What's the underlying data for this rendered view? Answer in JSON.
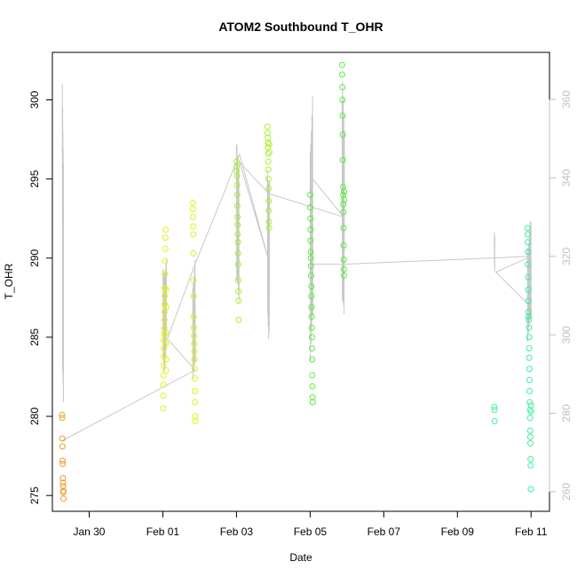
{
  "chart_data": {
    "type": "scatter",
    "title": "ATOM2 Southbound T_OHR",
    "xlabel": "Date",
    "ylabel": "T_OHR",
    "x_axis": {
      "range": [
        "2022-01-29T00:00",
        "2022-02-11T12:00"
      ],
      "ticks": [
        {
          "at": "2022-01-30",
          "label": "Jan 30"
        },
        {
          "at": "2022-02-01",
          "label": "Feb 01"
        },
        {
          "at": "2022-02-03",
          "label": "Feb 03"
        },
        {
          "at": "2022-02-05",
          "label": "Feb 05"
        },
        {
          "at": "2022-02-07",
          "label": "Feb 07"
        },
        {
          "at": "2022-02-09",
          "label": "Feb 09"
        },
        {
          "at": "2022-02-11",
          "label": "Feb 11"
        }
      ]
    },
    "y_axis_left": {
      "range": [
        274,
        303
      ],
      "ticks": [
        275,
        280,
        285,
        290,
        295,
        300
      ]
    },
    "y_axis_right": {
      "range": [
        255,
        372
      ],
      "ticks": [
        260,
        280,
        300,
        320,
        340,
        360
      ],
      "color": "#bfbfbf"
    },
    "series": [
      {
        "color": "#ee9a2a",
        "points": [
          {
            "x": "2022-01-29T06:20",
            "y": 280.1
          },
          {
            "x": "2022-01-29T06:25",
            "y": 279.9
          },
          {
            "x": "2022-01-29T06:30",
            "y": 278.6
          },
          {
            "x": "2022-01-29T06:35",
            "y": 278.1
          },
          {
            "x": "2022-01-29T06:40",
            "y": 277.2
          },
          {
            "x": "2022-01-29T06:45",
            "y": 277.0
          },
          {
            "x": "2022-01-29T06:50",
            "y": 276.1
          },
          {
            "x": "2022-01-29T06:55",
            "y": 275.8
          },
          {
            "x": "2022-01-29T07:00",
            "y": 275.6
          },
          {
            "x": "2022-01-29T07:05",
            "y": 275.2
          },
          {
            "x": "2022-01-29T07:10",
            "y": 275.3
          },
          {
            "x": "2022-01-29T07:15",
            "y": 274.8
          }
        ]
      },
      {
        "color": "#e1f218",
        "points": [
          {
            "x": "2022-02-01T00:10",
            "y": 280.5
          },
          {
            "x": "2022-02-01T00:15",
            "y": 281.3
          },
          {
            "x": "2022-02-01T00:20",
            "y": 282.0
          },
          {
            "x": "2022-02-01T00:25",
            "y": 282.6
          },
          {
            "x": "2022-02-01T00:30",
            "y": 283.2
          },
          {
            "x": "2022-02-01T00:35",
            "y": 283.8
          },
          {
            "x": "2022-02-01T00:40",
            "y": 284.3
          },
          {
            "x": "2022-02-01T00:45",
            "y": 284.8
          },
          {
            "x": "2022-02-01T00:50",
            "y": 285.2
          },
          {
            "x": "2022-02-01T00:55",
            "y": 285.6
          },
          {
            "x": "2022-02-01T01:00",
            "y": 286.1
          },
          {
            "x": "2022-02-01T01:05",
            "y": 286.6
          },
          {
            "x": "2022-02-01T01:10",
            "y": 287.1
          },
          {
            "x": "2022-02-01T01:15",
            "y": 287.6
          },
          {
            "x": "2022-02-01T01:20",
            "y": 288.1
          },
          {
            "x": "2022-02-01T01:25",
            "y": 289.0
          },
          {
            "x": "2022-02-01T01:30",
            "y": 289.8
          },
          {
            "x": "2022-02-01T01:35",
            "y": 290.6
          },
          {
            "x": "2022-02-01T01:40",
            "y": 291.3
          },
          {
            "x": "2022-02-01T01:45",
            "y": 291.8
          },
          {
            "x": "2022-02-01T01:50",
            "y": 284.6
          },
          {
            "x": "2022-02-01T01:55",
            "y": 285.3
          },
          {
            "x": "2022-02-01T02:00",
            "y": 283.6
          },
          {
            "x": "2022-02-01T02:05",
            "y": 282.9
          },
          {
            "x": "2022-02-01T02:10",
            "y": 286.9
          },
          {
            "x": "2022-02-01T02:15",
            "y": 288.0
          },
          {
            "x": "2022-02-01T19:30",
            "y": 293.5
          },
          {
            "x": "2022-02-01T19:35",
            "y": 293.1
          },
          {
            "x": "2022-02-01T19:40",
            "y": 292.6
          },
          {
            "x": "2022-02-01T19:45",
            "y": 292.0
          },
          {
            "x": "2022-02-01T19:50",
            "y": 291.5
          },
          {
            "x": "2022-02-01T19:55",
            "y": 290.3
          },
          {
            "x": "2022-02-01T20:00",
            "y": 288.6
          },
          {
            "x": "2022-02-01T20:05",
            "y": 287.6
          },
          {
            "x": "2022-02-01T20:10",
            "y": 286.3
          },
          {
            "x": "2022-02-01T20:15",
            "y": 285.6
          },
          {
            "x": "2022-02-01T20:20",
            "y": 285.1
          },
          {
            "x": "2022-02-01T20:25",
            "y": 284.6
          },
          {
            "x": "2022-02-01T20:30",
            "y": 284.1
          },
          {
            "x": "2022-02-01T20:35",
            "y": 283.6
          },
          {
            "x": "2022-02-01T20:40",
            "y": 283.0
          },
          {
            "x": "2022-02-01T20:45",
            "y": 282.4
          },
          {
            "x": "2022-02-01T20:50",
            "y": 281.6
          },
          {
            "x": "2022-02-01T20:55",
            "y": 280.9
          },
          {
            "x": "2022-02-01T21:00",
            "y": 280.0
          },
          {
            "x": "2022-02-01T21:05",
            "y": 279.7
          }
        ]
      },
      {
        "color": "#a8f22c",
        "points": [
          {
            "x": "2022-02-03T00:05",
            "y": 296.1
          },
          {
            "x": "2022-02-03T00:10",
            "y": 295.8
          },
          {
            "x": "2022-02-03T00:15",
            "y": 295.5
          },
          {
            "x": "2022-02-03T00:20",
            "y": 295.2
          },
          {
            "x": "2022-02-03T00:25",
            "y": 294.6
          },
          {
            "x": "2022-02-03T00:30",
            "y": 294.0
          },
          {
            "x": "2022-02-03T00:35",
            "y": 293.3
          },
          {
            "x": "2022-02-03T00:40",
            "y": 292.6
          },
          {
            "x": "2022-02-03T00:45",
            "y": 292.1
          },
          {
            "x": "2022-02-03T00:50",
            "y": 291.5
          },
          {
            "x": "2022-02-03T00:55",
            "y": 291.0
          },
          {
            "x": "2022-02-03T01:00",
            "y": 290.3
          },
          {
            "x": "2022-02-03T01:05",
            "y": 289.6
          },
          {
            "x": "2022-02-03T01:10",
            "y": 288.6
          },
          {
            "x": "2022-02-03T01:15",
            "y": 287.9
          },
          {
            "x": "2022-02-03T01:20",
            "y": 287.3
          },
          {
            "x": "2022-02-03T01:25",
            "y": 286.1
          },
          {
            "x": "2022-02-03T20:10",
            "y": 298.3
          },
          {
            "x": "2022-02-03T20:15",
            "y": 297.9
          },
          {
            "x": "2022-02-03T20:20",
            "y": 297.6
          },
          {
            "x": "2022-02-03T20:25",
            "y": 297.3
          },
          {
            "x": "2022-02-03T20:30",
            "y": 297.0
          },
          {
            "x": "2022-02-03T20:35",
            "y": 296.6
          },
          {
            "x": "2022-02-03T20:40",
            "y": 296.1
          },
          {
            "x": "2022-02-03T20:45",
            "y": 295.6
          },
          {
            "x": "2022-02-03T20:50",
            "y": 295.0
          },
          {
            "x": "2022-02-03T20:55",
            "y": 294.4
          },
          {
            "x": "2022-02-03T21:00",
            "y": 293.6
          },
          {
            "x": "2022-02-03T21:05",
            "y": 293.0
          },
          {
            "x": "2022-02-03T21:10",
            "y": 292.3
          },
          {
            "x": "2022-02-03T21:15",
            "y": 291.9
          },
          {
            "x": "2022-02-03T21:20",
            "y": 297.2
          },
          {
            "x": "2022-02-03T21:25",
            "y": 296.7
          }
        ]
      },
      {
        "color": "#57ef3c",
        "points": [
          {
            "x": "2022-02-05T00:00",
            "y": 294.0
          },
          {
            "x": "2022-02-05T00:05",
            "y": 293.2
          },
          {
            "x": "2022-02-05T00:10",
            "y": 292.5
          },
          {
            "x": "2022-02-05T00:15",
            "y": 291.8
          },
          {
            "x": "2022-02-05T00:20",
            "y": 291.1
          },
          {
            "x": "2022-02-05T00:25",
            "y": 290.4
          },
          {
            "x": "2022-02-05T00:30",
            "y": 290.0
          },
          {
            "x": "2022-02-05T00:35",
            "y": 289.5
          },
          {
            "x": "2022-02-05T00:40",
            "y": 288.9
          },
          {
            "x": "2022-02-05T00:45",
            "y": 288.2
          },
          {
            "x": "2022-02-05T00:50",
            "y": 287.6
          },
          {
            "x": "2022-02-05T00:55",
            "y": 286.9
          },
          {
            "x": "2022-02-05T01:00",
            "y": 286.3
          },
          {
            "x": "2022-02-05T01:05",
            "y": 285.6
          },
          {
            "x": "2022-02-05T01:10",
            "y": 285.0
          },
          {
            "x": "2022-02-05T01:15",
            "y": 284.3
          },
          {
            "x": "2022-02-05T01:20",
            "y": 283.6
          },
          {
            "x": "2022-02-05T01:25",
            "y": 282.6
          },
          {
            "x": "2022-02-05T01:30",
            "y": 281.9
          },
          {
            "x": "2022-02-05T01:35",
            "y": 281.2
          },
          {
            "x": "2022-02-05T01:40",
            "y": 280.9
          },
          {
            "x": "2022-02-05T20:50",
            "y": 302.2
          },
          {
            "x": "2022-02-05T20:55",
            "y": 301.6
          },
          {
            "x": "2022-02-05T21:00",
            "y": 300.8
          },
          {
            "x": "2022-02-05T21:05",
            "y": 300.0
          },
          {
            "x": "2022-02-05T21:10",
            "y": 299.0
          },
          {
            "x": "2022-02-05T21:15",
            "y": 297.8
          },
          {
            "x": "2022-02-05T21:20",
            "y": 296.2
          },
          {
            "x": "2022-02-05T21:25",
            "y": 294.5
          },
          {
            "x": "2022-02-05T21:30",
            "y": 294.0
          },
          {
            "x": "2022-02-05T21:35",
            "y": 293.4
          },
          {
            "x": "2022-02-05T21:40",
            "y": 292.9
          },
          {
            "x": "2022-02-05T21:45",
            "y": 291.9
          },
          {
            "x": "2022-02-05T21:50",
            "y": 290.8
          },
          {
            "x": "2022-02-05T21:55",
            "y": 289.9
          },
          {
            "x": "2022-02-05T22:00",
            "y": 289.3
          },
          {
            "x": "2022-02-05T22:05",
            "y": 288.9
          },
          {
            "x": "2022-02-05T22:10",
            "y": 294.2
          },
          {
            "x": "2022-02-05T22:15",
            "y": 293.7
          }
        ]
      },
      {
        "color": "#3ef09a",
        "points": [
          {
            "x": "2022-02-10T00:05",
            "y": 280.6
          },
          {
            "x": "2022-02-10T00:10",
            "y": 280.4
          },
          {
            "x": "2022-02-10T00:15",
            "y": 279.7
          },
          {
            "x": "2022-02-10T21:40",
            "y": 291.9
          },
          {
            "x": "2022-02-10T21:45",
            "y": 291.5
          },
          {
            "x": "2022-02-10T21:50",
            "y": 291.0
          },
          {
            "x": "2022-02-10T21:55",
            "y": 290.4
          },
          {
            "x": "2022-02-10T22:00",
            "y": 289.6
          },
          {
            "x": "2022-02-10T22:05",
            "y": 288.8
          },
          {
            "x": "2022-02-10T22:10",
            "y": 288.0
          },
          {
            "x": "2022-02-10T22:15",
            "y": 287.3
          },
          {
            "x": "2022-02-10T22:20",
            "y": 286.6
          },
          {
            "x": "2022-02-10T22:25",
            "y": 286.3
          },
          {
            "x": "2022-02-10T22:30",
            "y": 286.1
          },
          {
            "x": "2022-02-10T22:35",
            "y": 285.6
          },
          {
            "x": "2022-02-10T22:40",
            "y": 285.0
          },
          {
            "x": "2022-02-10T22:45",
            "y": 284.3
          },
          {
            "x": "2022-02-10T22:50",
            "y": 283.7
          },
          {
            "x": "2022-02-10T22:55",
            "y": 283.0
          },
          {
            "x": "2022-02-10T23:00",
            "y": 282.3
          },
          {
            "x": "2022-02-10T23:05",
            "y": 281.6
          },
          {
            "x": "2022-02-10T23:10",
            "y": 280.9
          },
          {
            "x": "2022-02-10T23:15",
            "y": 280.4
          },
          {
            "x": "2022-02-10T23:20",
            "y": 279.9
          },
          {
            "x": "2022-02-10T23:25",
            "y": 279.1
          },
          {
            "x": "2022-02-10T23:30",
            "y": 278.7
          },
          {
            "x": "2022-02-10T23:35",
            "y": 278.3
          },
          {
            "x": "2022-02-10T23:40",
            "y": 277.3
          },
          {
            "x": "2022-02-10T23:45",
            "y": 276.9
          },
          {
            "x": "2022-02-10T23:50",
            "y": 275.4
          },
          {
            "x": "2022-02-10T23:55",
            "y": 280.7
          },
          {
            "x": "2022-02-11T00:00",
            "y": 280.3
          }
        ]
      }
    ],
    "secondary_line": {
      "axis": "right",
      "color": "#c8c8c8",
      "connector": [
        {
          "x": "2022-01-29T06:30",
          "y": 273
        },
        {
          "x": "2022-02-01T21:00",
          "y": 291
        },
        {
          "x": "2022-02-01T03:00",
          "y": 299
        },
        {
          "x": "2022-02-01T21:00",
          "y": 318
        },
        {
          "x": "2022-02-03T02:00",
          "y": 346
        },
        {
          "x": "2022-02-03T21:00",
          "y": 319
        },
        {
          "x": "2022-02-03T02:00",
          "y": 344
        },
        {
          "x": "2022-02-03T21:00",
          "y": 336
        },
        {
          "x": "2022-02-05T22:00",
          "y": 330
        },
        {
          "x": "2022-02-05T01:00",
          "y": 340
        },
        {
          "x": "2022-02-05T01:00",
          "y": 318
        },
        {
          "x": "2022-02-05T22:00",
          "y": 318
        },
        {
          "x": "2022-02-11T00:00",
          "y": 320
        },
        {
          "x": "2022-02-10T01:00",
          "y": 316
        },
        {
          "x": "2022-02-10T01:00",
          "y": 316
        },
        {
          "x": "2022-02-11T00:00",
          "y": 307
        }
      ],
      "bursts": [
        {
          "start": "2022-01-29T06:30",
          "end": "2022-01-29T07:15",
          "min": 268,
          "max": 364
        },
        {
          "start": "2022-02-01T00:05",
          "end": "2022-02-01T02:20",
          "min": 290,
          "max": 324
        },
        {
          "start": "2022-02-01T19:30",
          "end": "2022-02-01T21:10",
          "min": 284,
          "max": 320
        },
        {
          "start": "2022-02-03T00:00",
          "end": "2022-02-03T01:40",
          "min": 302,
          "max": 350
        },
        {
          "start": "2022-02-03T20:10",
          "end": "2022-02-03T21:30",
          "min": 298,
          "max": 352
        },
        {
          "start": "2022-02-05T00:00",
          "end": "2022-02-05T01:45",
          "min": 285,
          "max": 366
        },
        {
          "start": "2022-02-05T20:50",
          "end": "2022-02-05T22:20",
          "min": 290,
          "max": 365
        },
        {
          "start": "2022-02-10T00:05",
          "end": "2022-02-10T00:20",
          "min": 316,
          "max": 328
        },
        {
          "start": "2022-02-10T21:40",
          "end": "2022-02-11T00:05",
          "min": 296,
          "max": 330
        }
      ]
    },
    "grid": false,
    "legend": "none"
  }
}
